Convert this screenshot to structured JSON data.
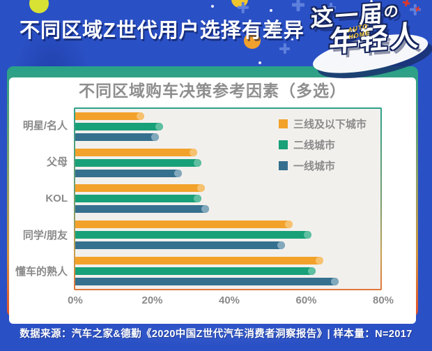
{
  "page": {
    "title": "不同区域Z世代用户选择有差异",
    "footer": "数据来源：汽车之家&德勤《2020中国Z世代汽车消费者洞察报告》| 样本量：N=2017"
  },
  "logo": {
    "line1": "这一届",
    "particle": "の",
    "line2": "年轻人",
    "brand": "AUTO\nHOME"
  },
  "colors": {
    "background_blue": "#2A50C5",
    "card_border_top": "#28A189",
    "card_border_bottom": "#E2512D",
    "plot_background": "#F2F0ED",
    "label_gray": "#8A8A8A",
    "series_orange": "#F2A22B",
    "series_green": "#18A078",
    "series_blue": "#35708E"
  },
  "chart_data": {
    "type": "bar",
    "orientation": "horizontal",
    "title": "不同区域购车决策参考因素（多选）",
    "categories": [
      "明星/名人",
      "父母",
      "KOL",
      "同学/朋友",
      "懂车的熟人"
    ],
    "series": [
      {
        "name": "三线及以下城市",
        "color": "#F2A22B",
        "cap_color": "#F6C26F",
        "values": [
          18,
          32,
          34,
          57,
          65
        ]
      },
      {
        "name": "二线城市",
        "color": "#18A078",
        "cap_color": "#5FBFA1",
        "values": [
          23,
          33,
          33,
          62,
          63
        ]
      },
      {
        "name": "一线城市",
        "color": "#35708E",
        "cap_color": "#82A8BC",
        "values": [
          22,
          28,
          35,
          55,
          69
        ]
      }
    ],
    "xlim": [
      0,
      80
    ],
    "x_ticks": [
      "0%",
      "20%",
      "40%",
      "60%",
      "80%"
    ],
    "legend_position": "top-right",
    "grid": false
  }
}
